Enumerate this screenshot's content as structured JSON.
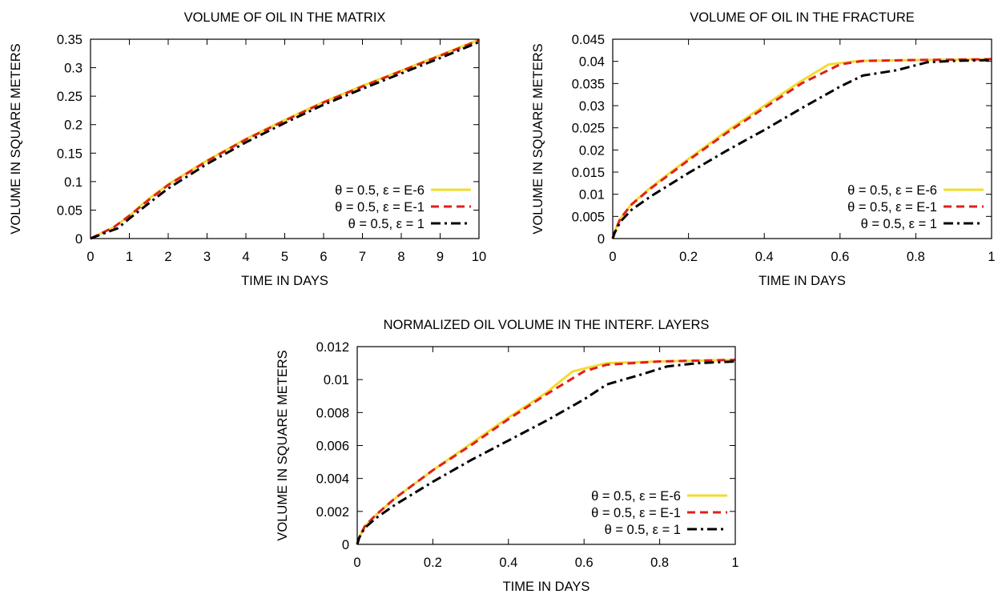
{
  "chart_data": [
    {
      "type": "line",
      "title": "VOLUME OF OIL IN THE MATRIX",
      "xlabel": "TIME IN DAYS",
      "ylabel": "VOLUME IN SQUARE METERS",
      "xlim": [
        0,
        10
      ],
      "ylim": [
        0,
        0.35
      ],
      "xticks": [
        0,
        1,
        2,
        3,
        4,
        5,
        6,
        7,
        8,
        9,
        10
      ],
      "yticks": [
        0,
        0.05,
        0.1,
        0.15,
        0.2,
        0.25,
        0.3,
        0.35
      ],
      "xtick_labels": [
        "0",
        "1",
        "2",
        "3",
        "4",
        "5",
        "6",
        "7",
        "8",
        "9",
        "10"
      ],
      "ytick_labels": [
        "0",
        "0.05",
        "0.1",
        "0.15",
        "0.2",
        "0.25",
        "0.3",
        "0.35"
      ],
      "grid": false,
      "legend": "bottom-right",
      "series": [
        {
          "name": "θ = 0.5, ε = E-6",
          "color": "#f2dc2e",
          "style": "solid",
          "x": [
            0,
            0.3,
            0.6,
            1,
            1.5,
            2,
            3,
            4,
            5,
            6,
            7,
            8,
            9,
            10
          ],
          "y": [
            0,
            0.01,
            0.02,
            0.04,
            0.07,
            0.095,
            0.137,
            0.175,
            0.208,
            0.24,
            0.268,
            0.295,
            0.322,
            0.349
          ]
        },
        {
          "name": "θ = 0.5, ε = E-1",
          "color": "#e0201c",
          "style": "dashed",
          "x": [
            0,
            0.3,
            0.6,
            1,
            1.5,
            2,
            3,
            4,
            5,
            6,
            7,
            8,
            9,
            10
          ],
          "y": [
            0,
            0.01,
            0.02,
            0.04,
            0.068,
            0.094,
            0.136,
            0.174,
            0.207,
            0.239,
            0.267,
            0.294,
            0.321,
            0.348
          ]
        },
        {
          "name": "θ = 0.5, ε = 1",
          "color": "#000000",
          "style": "dashdot",
          "x": [
            0,
            0.3,
            0.7,
            1,
            1.5,
            2,
            3,
            4,
            5,
            6,
            7,
            8,
            9,
            10
          ],
          "y": [
            0,
            0.008,
            0.018,
            0.035,
            0.062,
            0.088,
            0.131,
            0.169,
            0.203,
            0.235,
            0.263,
            0.29,
            0.317,
            0.345
          ]
        }
      ]
    },
    {
      "type": "line",
      "title": "VOLUME OF OIL IN THE FRACTURE",
      "xlabel": "TIME IN DAYS",
      "ylabel": "VOLUME IN SQUARE METERS",
      "xlim": [
        0,
        1
      ],
      "ylim": [
        0,
        0.045
      ],
      "xticks": [
        0,
        0.2,
        0.4,
        0.6,
        0.8,
        1
      ],
      "yticks": [
        0,
        0.005,
        0.01,
        0.015,
        0.02,
        0.025,
        0.03,
        0.035,
        0.04,
        0.045
      ],
      "xtick_labels": [
        "0",
        "0.2",
        "0.4",
        "0.6",
        "0.8",
        "1"
      ],
      "ytick_labels": [
        "0",
        "0.005",
        "0.01",
        "0.015",
        "0.02",
        "0.025",
        "0.03",
        "0.035",
        "0.04",
        "0.045"
      ],
      "grid": false,
      "legend": "bottom-right",
      "series": [
        {
          "name": "θ = 0.5, ε = E-6",
          "color": "#f2dc2e",
          "style": "solid",
          "x": [
            0,
            0.005,
            0.02,
            0.05,
            0.1,
            0.15,
            0.2,
            0.3,
            0.4,
            0.5,
            0.57,
            0.65,
            0.8,
            1
          ],
          "y": [
            0,
            0.0015,
            0.0045,
            0.0078,
            0.0115,
            0.0148,
            0.018,
            0.0242,
            0.03,
            0.0357,
            0.0393,
            0.0401,
            0.0403,
            0.0405
          ]
        },
        {
          "name": "θ = 0.5, ε = E-1",
          "color": "#e0201c",
          "style": "dashed",
          "x": [
            0,
            0.005,
            0.02,
            0.05,
            0.1,
            0.15,
            0.2,
            0.3,
            0.4,
            0.5,
            0.6,
            0.66,
            0.8,
            1
          ],
          "y": [
            0,
            0.0015,
            0.0045,
            0.0077,
            0.0113,
            0.0145,
            0.0177,
            0.0238,
            0.0295,
            0.0351,
            0.0393,
            0.0401,
            0.0403,
            0.0405
          ]
        },
        {
          "name": "θ = 0.5, ε = 1",
          "color": "#000000",
          "style": "dashdot",
          "x": [
            0,
            0.005,
            0.02,
            0.05,
            0.1,
            0.2,
            0.3,
            0.4,
            0.5,
            0.6,
            0.66,
            0.75,
            0.83,
            0.9,
            1
          ],
          "y": [
            0,
            0.0013,
            0.0038,
            0.0065,
            0.0095,
            0.0148,
            0.0198,
            0.0245,
            0.0295,
            0.0343,
            0.0368,
            0.038,
            0.0398,
            0.0401,
            0.0403
          ]
        }
      ]
    },
    {
      "type": "line",
      "title": "NORMALIZED OIL VOLUME IN THE INTERF. LAYERS",
      "xlabel": "TIME IN DAYS",
      "ylabel": "VOLUME IN SQUARE METERS",
      "xlim": [
        0,
        1
      ],
      "ylim": [
        0,
        0.012
      ],
      "xticks": [
        0,
        0.2,
        0.4,
        0.6,
        0.8,
        1
      ],
      "yticks": [
        0,
        0.002,
        0.004,
        0.006,
        0.008,
        0.01,
        0.012
      ],
      "xtick_labels": [
        "0",
        "0.2",
        "0.4",
        "0.6",
        "0.8",
        "1"
      ],
      "ytick_labels": [
        "0",
        "0.002",
        "0.004",
        "0.006",
        "0.008",
        "0.01",
        "0.012"
      ],
      "grid": false,
      "legend": "bottom-right",
      "series": [
        {
          "name": "θ = 0.5, ε = E-6",
          "color": "#f2dc2e",
          "style": "solid",
          "x": [
            0,
            0.005,
            0.02,
            0.05,
            0.1,
            0.2,
            0.3,
            0.4,
            0.5,
            0.57,
            0.66,
            0.8,
            1
          ],
          "y": [
            0,
            0.0004,
            0.0011,
            0.0018,
            0.0028,
            0.0045,
            0.0061,
            0.0077,
            0.0092,
            0.0105,
            0.011,
            0.0111,
            0.0112
          ]
        },
        {
          "name": "θ = 0.5, ε = E-1",
          "color": "#e0201c",
          "style": "dashed",
          "x": [
            0,
            0.005,
            0.02,
            0.05,
            0.1,
            0.2,
            0.3,
            0.4,
            0.5,
            0.6,
            0.66,
            0.8,
            1
          ],
          "y": [
            0,
            0.0004,
            0.0011,
            0.0018,
            0.0028,
            0.0045,
            0.006,
            0.0076,
            0.0091,
            0.0105,
            0.0109,
            0.0111,
            0.0112
          ]
        },
        {
          "name": "θ = 0.5, ε = 1",
          "color": "#000000",
          "style": "dashdot",
          "x": [
            0,
            0.005,
            0.02,
            0.05,
            0.1,
            0.2,
            0.3,
            0.4,
            0.5,
            0.6,
            0.66,
            0.75,
            0.82,
            0.9,
            1
          ],
          "y": [
            0,
            0.0004,
            0.001,
            0.0016,
            0.0024,
            0.0038,
            0.0051,
            0.0063,
            0.0075,
            0.0088,
            0.0097,
            0.0103,
            0.0108,
            0.011,
            0.0111
          ]
        }
      ]
    }
  ]
}
